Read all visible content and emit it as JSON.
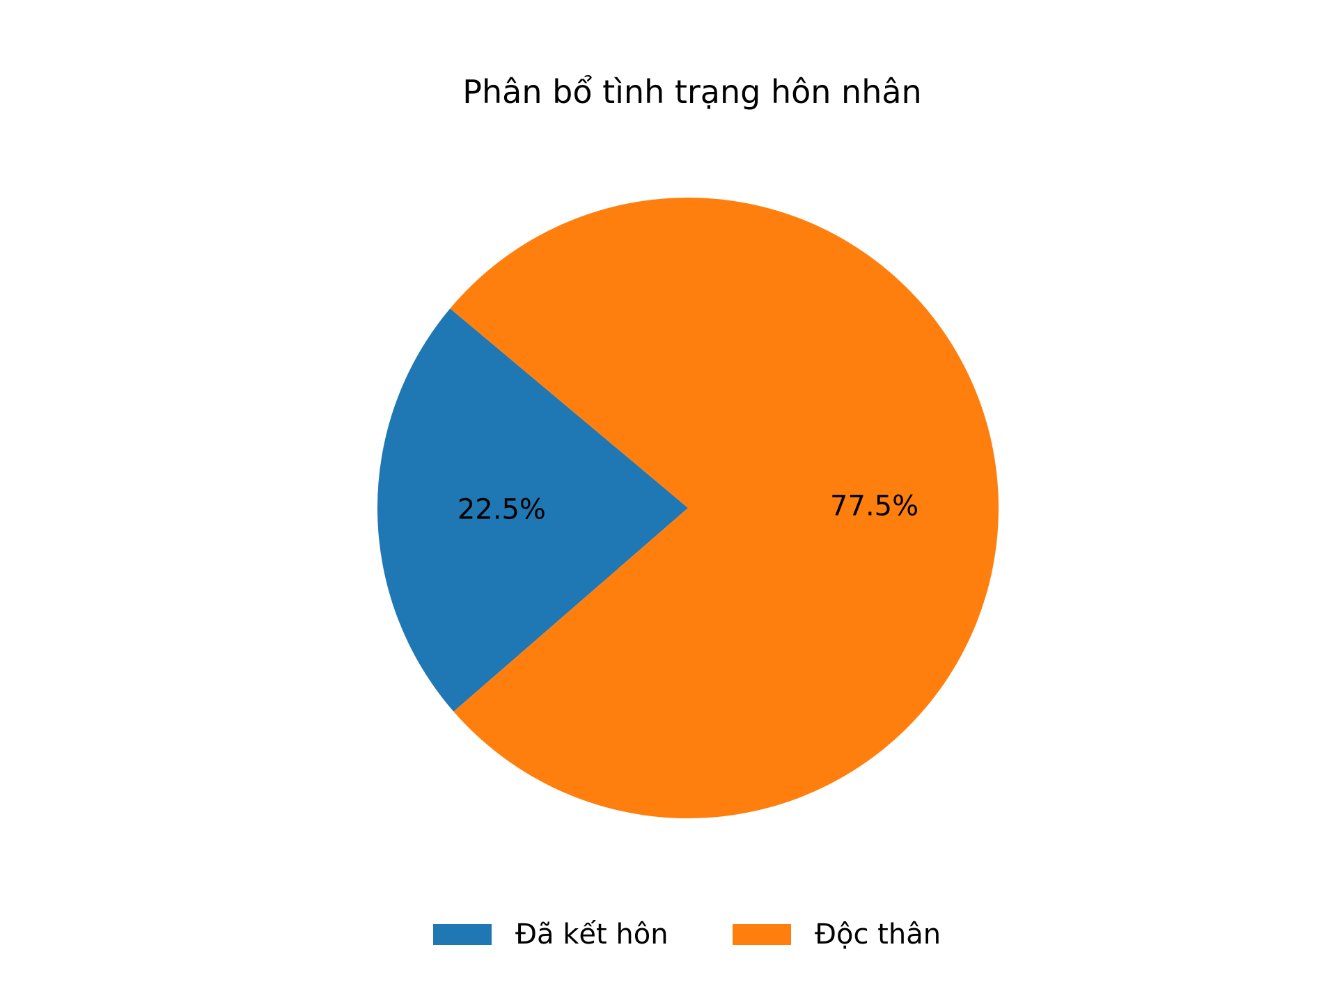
{
  "chart_data": {
    "type": "pie",
    "title": "Phân bổ tình trạng hôn nhân",
    "categories": [
      "Đã kết hôn",
      "Độc thân"
    ],
    "values": [
      22.5,
      77.5
    ],
    "value_labels": [
      "22.5%",
      "77.5%"
    ],
    "colors": [
      "#1f77b4",
      "#ff7f0e"
    ],
    "legend": {
      "placement": "bottom",
      "entries": [
        "Đã kết hôn",
        "Độc thân"
      ]
    }
  }
}
